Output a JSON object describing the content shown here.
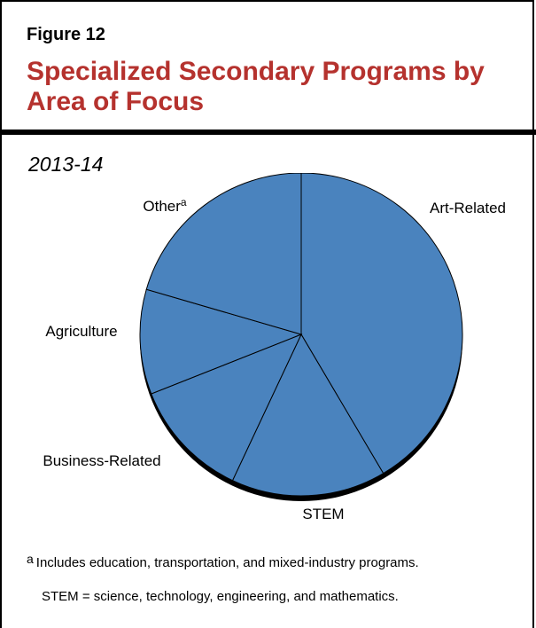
{
  "figure": {
    "label": "Figure 12",
    "title": "Specialized Secondary Programs by Area of Focus",
    "subtitle": "2013-14"
  },
  "chart_data": {
    "type": "pie",
    "title": "Specialized Secondary Programs by Area of Focus",
    "subtitle": "2013-14",
    "slice_color": "#4a83be",
    "edge_color": "#000000",
    "slices": [
      {
        "label": "Art-Related",
        "value": 41.5,
        "superscript": ""
      },
      {
        "label": "STEM",
        "value": 15.5,
        "superscript": ""
      },
      {
        "label": "Business-Related",
        "value": 12.0,
        "superscript": ""
      },
      {
        "label": "Agriculture",
        "value": 10.5,
        "superscript": ""
      },
      {
        "label": "Other",
        "value": 20.5,
        "superscript": "a"
      }
    ]
  },
  "footnotes": {
    "marker": "a",
    "note_a": "Includes education, transportation, and mixed-industry programs.",
    "stem": "STEM = science, technology, engineering, and mathematics."
  }
}
